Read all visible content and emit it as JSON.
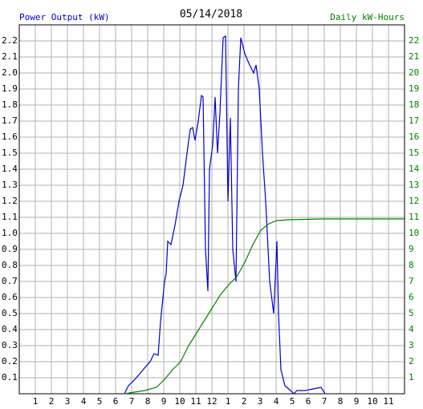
{
  "chart_data": {
    "type": "line",
    "title": "05/14/2018",
    "xlim": [
      0,
      24
    ],
    "xticks": [
      1,
      2,
      3,
      4,
      5,
      6,
      7,
      8,
      9,
      10,
      11,
      12,
      {
        "value": 13,
        "label": "1"
      },
      {
        "value": 14,
        "label": "2"
      },
      {
        "value": 15,
        "label": "3"
      },
      {
        "value": 16,
        "label": "4"
      },
      {
        "value": 17,
        "label": "5"
      },
      {
        "value": 18,
        "label": "6"
      },
      {
        "value": 19,
        "label": "7"
      },
      {
        "value": 20,
        "label": "8"
      },
      {
        "value": 21,
        "label": "9"
      },
      {
        "value": 22,
        "label": "10"
      },
      {
        "value": 23,
        "label": "11"
      }
    ],
    "ylim": [
      0,
      2.3
    ],
    "yticks": [
      0.1,
      0.2,
      0.3,
      0.4,
      0.5,
      0.6,
      0.7,
      0.8,
      0.9,
      {
        "value": 1,
        "label": "1.0"
      },
      1.1,
      1.2,
      1.3,
      1.4,
      1.5,
      1.6,
      1.7,
      1.8,
      1.9,
      {
        "value": 2,
        "label": "2.0"
      },
      2.1,
      2.2
    ],
    "y2lim": [
      0,
      23
    ],
    "y2ticks": [
      1,
      2,
      3,
      4,
      5,
      6,
      7,
      8,
      9,
      10,
      11,
      12,
      13,
      14,
      15,
      16,
      17,
      18,
      19,
      20,
      21,
      22
    ],
    "grid": true,
    "series": [
      {
        "name": "Power Output (kW)",
        "color": "#0000cc",
        "x": [
          6.55,
          6.8,
          7.3,
          7.8,
          8.15,
          8.4,
          8.65,
          8.8,
          9.05,
          9.15,
          9.25,
          9.45,
          9.7,
          9.95,
          10.2,
          10.45,
          10.65,
          10.8,
          10.95,
          11.15,
          11.35,
          11.45,
          11.6,
          11.75,
          11.85,
          12.05,
          12.2,
          12.35,
          12.5,
          12.7,
          12.85,
          13.0,
          13.15,
          13.3,
          13.5,
          13.65,
          13.8,
          14.05,
          14.35,
          14.6,
          14.75,
          14.95,
          15.15,
          15.35,
          15.6,
          15.85,
          16.05,
          16.15,
          16.3,
          16.55,
          16.9,
          17.1,
          17.3,
          17.8,
          18.3,
          18.8,
          19.05
        ],
        "values": [
          0,
          0.05,
          0.1,
          0.16,
          0.2,
          0.25,
          0.24,
          0.45,
          0.7,
          0.75,
          0.95,
          0.93,
          1.05,
          1.2,
          1.3,
          1.5,
          1.65,
          1.66,
          1.58,
          1.7,
          1.86,
          1.85,
          0.9,
          0.64,
          1.4,
          1.55,
          1.85,
          1.5,
          1.75,
          2.22,
          2.23,
          1.2,
          1.72,
          0.9,
          0.7,
          1.9,
          2.22,
          2.12,
          2.05,
          2.0,
          2.05,
          1.9,
          1.5,
          1.2,
          0.7,
          0.5,
          0.95,
          0.5,
          0.15,
          0.05,
          0.02,
          0,
          0.02,
          0.02,
          0.03,
          0.04,
          0
        ]
      },
      {
        "name": "Daily kW-Hours",
        "color": "#008000",
        "axis": "y2",
        "x": [
          6.55,
          7.8,
          8.55,
          9.05,
          9.55,
          10.05,
          10.55,
          11.05,
          11.55,
          12.05,
          12.55,
          13.05,
          13.55,
          14.05,
          14.55,
          15.05,
          15.55,
          16.05,
          16.8,
          18.8,
          24
        ],
        "values": [
          0,
          0.2,
          0.4,
          0.9,
          1.5,
          2.0,
          3.0,
          3.8,
          4.6,
          5.4,
          6.2,
          6.8,
          7.3,
          8.2,
          9.3,
          10.2,
          10.6,
          10.8,
          10.85,
          10.9,
          10.9
        ]
      }
    ]
  }
}
